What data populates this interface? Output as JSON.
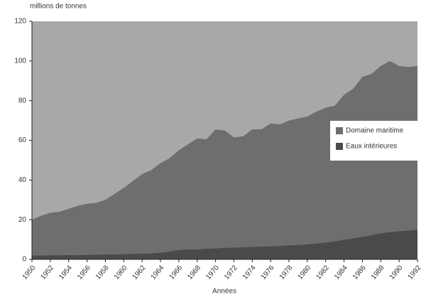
{
  "chart_data": {
    "type": "stacked_area",
    "ylabel": "millions de tonnes",
    "xlabel": "Années",
    "x": [
      1950,
      1951,
      1952,
      1953,
      1954,
      1955,
      1956,
      1957,
      1958,
      1959,
      1960,
      1961,
      1962,
      1963,
      1964,
      1965,
      1966,
      1967,
      1968,
      1969,
      1970,
      1971,
      1972,
      1973,
      1974,
      1975,
      1976,
      1977,
      1978,
      1979,
      1980,
      1981,
      1982,
      1983,
      1984,
      1985,
      1986,
      1987,
      1988,
      1989,
      1990,
      1991,
      1992
    ],
    "series": [
      {
        "name": "Eaux intérieures",
        "color": "#4a4a4a",
        "values": [
          2.0,
          2.0,
          2.1,
          2.1,
          2.2,
          2.2,
          2.3,
          2.4,
          2.5,
          2.6,
          2.7,
          2.8,
          2.9,
          3.0,
          3.4,
          4.0,
          4.8,
          5.0,
          5.1,
          5.4,
          5.6,
          5.8,
          6.0,
          6.1,
          6.3,
          6.5,
          6.6,
          6.8,
          7.1,
          7.3,
          7.6,
          8.0,
          8.5,
          9.1,
          10.0,
          10.6,
          11.4,
          12.2,
          13.2,
          13.8,
          14.2,
          14.5,
          15.0
        ]
      },
      {
        "name": "Domaine maritime",
        "color": "#6e6e6e",
        "values": [
          18.0,
          20.0,
          21.4,
          21.9,
          23.3,
          24.8,
          25.7,
          26.1,
          27.5,
          30.4,
          33.3,
          36.7,
          40.1,
          42.0,
          45.1,
          47.0,
          50.2,
          53.0,
          55.9,
          55.1,
          59.9,
          59.2,
          55.5,
          55.9,
          59.2,
          59.0,
          61.9,
          61.2,
          62.9,
          63.7,
          64.4,
          66.5,
          68.0,
          68.4,
          73.0,
          75.4,
          80.6,
          81.3,
          84.3,
          86.2,
          83.3,
          82.5,
          82.5
        ]
      }
    ],
    "xlim": [
      1950,
      1992
    ],
    "xticks": [
      1950,
      1952,
      1954,
      1956,
      1958,
      1960,
      1962,
      1964,
      1966,
      1968,
      1970,
      1972,
      1974,
      1976,
      1978,
      1980,
      1982,
      1984,
      1986,
      1988,
      1990,
      1992
    ],
    "ylim": [
      0,
      120
    ],
    "yticks": [
      0,
      20,
      40,
      60,
      80,
      100,
      120
    ],
    "legend": "right",
    "background": "#a8a8a8"
  }
}
